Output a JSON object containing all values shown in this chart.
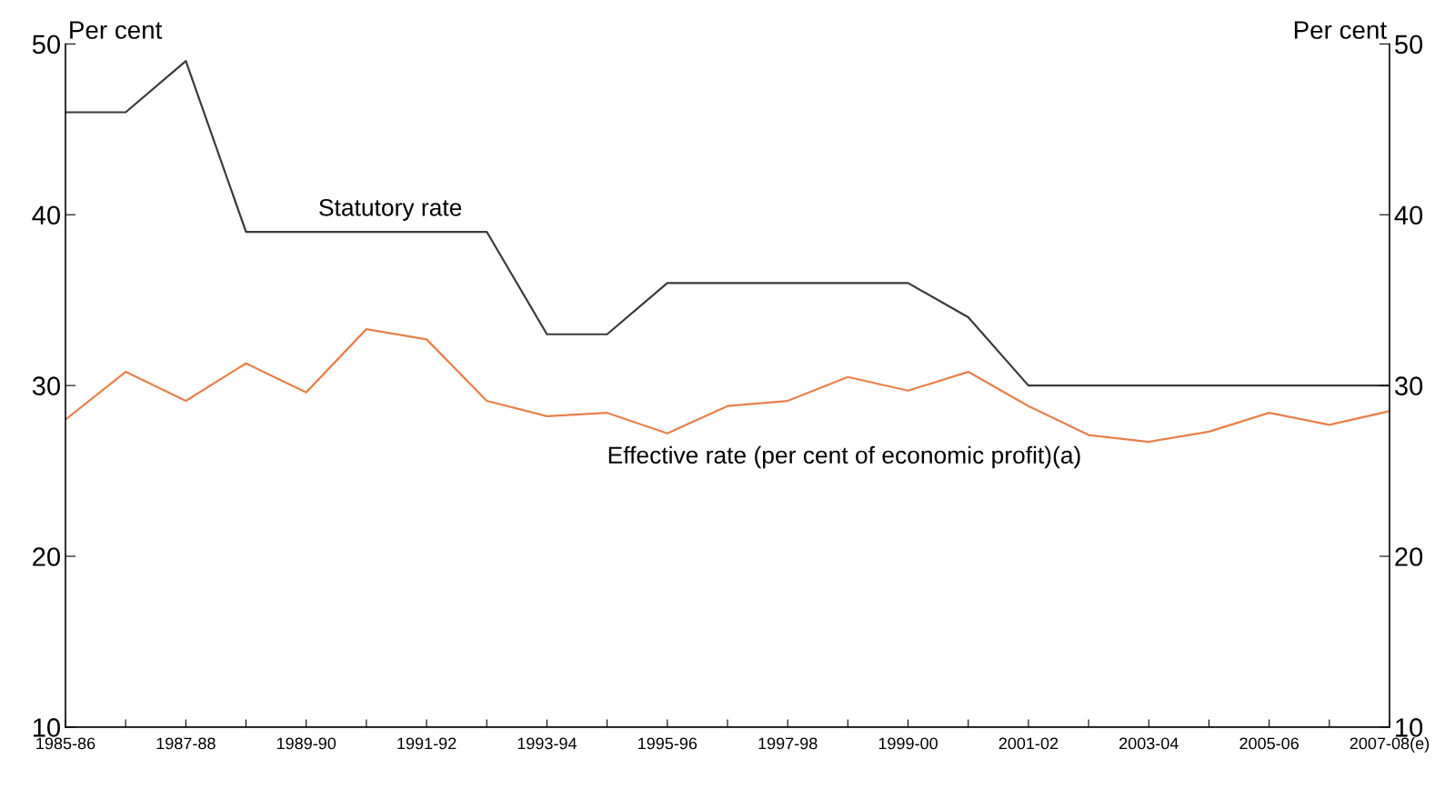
{
  "chart_data": {
    "type": "line",
    "categories": [
      "1985-86",
      null,
      "1987-88",
      null,
      "1989-90",
      null,
      "1991-92",
      null,
      "1993-94",
      null,
      "1995-96",
      null,
      "1997-98",
      null,
      "1999-00",
      null,
      "2001-02",
      null,
      "2003-04",
      null,
      "2005-06",
      null,
      "2007-08(e)"
    ],
    "series": [
      {
        "name": "Statutory rate",
        "color": "#3a3a3a",
        "values": [
          46,
          46,
          49,
          39,
          39,
          39,
          39,
          39,
          33,
          33,
          36,
          36,
          36,
          36,
          36,
          34,
          30,
          30,
          30,
          30,
          30,
          30,
          30
        ]
      },
      {
        "name": "Effective rate (per cent of economic profit)(a)",
        "color": "#e8804a",
        "values": [
          28,
          30.8,
          29.1,
          31.3,
          29.6,
          33.3,
          32.7,
          29.1,
          28.2,
          28.4,
          27.2,
          28.8,
          29.1,
          30.5,
          29.7,
          30.8,
          28.8,
          27.1,
          26.7,
          27.3,
          28.4,
          27.7,
          28.5
        ]
      }
    ],
    "ylabel": "Per cent",
    "y2label": "Per cent",
    "ylim": [
      10,
      50
    ],
    "yticks": [
      10,
      20,
      30,
      40,
      50
    ],
    "y2lim": [
      10,
      50
    ],
    "y2ticks": [
      10,
      20,
      30,
      40,
      50
    ],
    "grid": false,
    "legend": false,
    "marker": "none",
    "line_style": "solid"
  }
}
